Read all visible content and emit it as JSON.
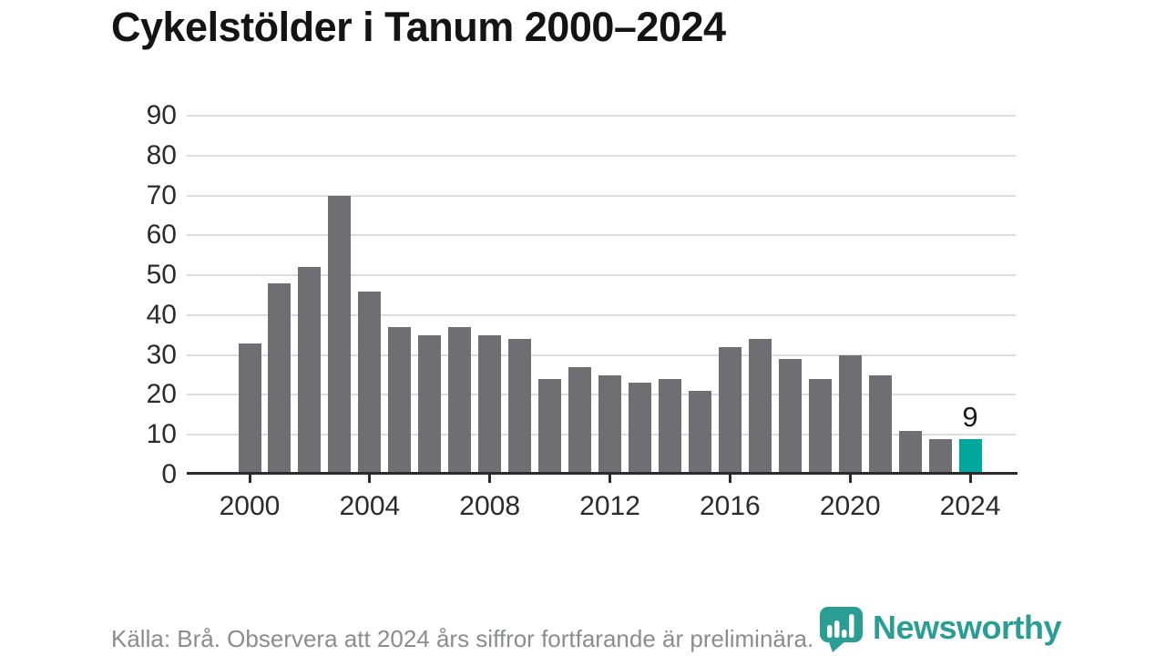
{
  "title": "Cykelstölder i Tanum 2000–2024",
  "footer": {
    "source_note": "Källa: Brå. Observera att 2024 års siffror fortfarande är preliminära."
  },
  "branding": {
    "logo_text": "Newsworthy",
    "logo_icon": "bar-chart-pin-icon"
  },
  "colors": {
    "bar_default": "#6e6e73",
    "bar_highlight": "#00a79c",
    "grid": "#dddddd",
    "axis": "#2b2b2b",
    "tick_label": "#2b2b2b",
    "title": "#141414",
    "footer_text": "#8b8d8d",
    "logo": "#2a9d95"
  },
  "chart_data": {
    "type": "bar",
    "title": "Cykelstölder i Tanum 2000–2024",
    "xlabel": "",
    "ylabel": "",
    "categories": [
      2000,
      2001,
      2002,
      2003,
      2004,
      2005,
      2006,
      2007,
      2008,
      2009,
      2010,
      2011,
      2012,
      2013,
      2014,
      2015,
      2016,
      2017,
      2018,
      2019,
      2020,
      2021,
      2022,
      2023,
      2024
    ],
    "values": [
      33,
      48,
      52,
      70,
      46,
      37,
      35,
      37,
      35,
      34,
      24,
      27,
      25,
      23,
      24,
      21,
      32,
      34,
      29,
      24,
      30,
      25,
      11,
      9,
      9
    ],
    "highlight_index": 24,
    "data_label": {
      "index": 24,
      "text": "9"
    },
    "ylim": [
      0,
      90
    ],
    "yticks": [
      0,
      10,
      20,
      30,
      40,
      50,
      60,
      70,
      80,
      90
    ],
    "xticks": [
      2000,
      2004,
      2008,
      2012,
      2016,
      2020,
      2024
    ],
    "grid": "horizontal",
    "legend": "none"
  }
}
